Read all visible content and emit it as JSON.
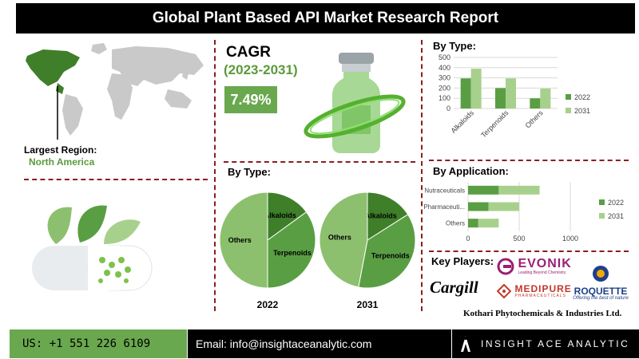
{
  "header": {
    "title": "Global Plant Based API Market Research Report"
  },
  "cagr": {
    "label": "CAGR",
    "period": "(2023-2031)",
    "value": "7.49%"
  },
  "region": {
    "label": "Largest Region:",
    "value": "North America"
  },
  "sections": {
    "by_type_pies": "By Type:",
    "by_type_bar": "By Type:",
    "by_application": "By Application:",
    "key_players": "Key Players:"
  },
  "players": [
    {
      "name": "EVONIK",
      "tagline": "Leading Beyond Chemistry"
    },
    {
      "name": "ROQUETTE",
      "tagline": "Offering the best of nature"
    },
    {
      "name": "Cargill"
    },
    {
      "name": "MEDIPURE",
      "tagline": "PHARMACEUTICALS"
    },
    {
      "name": "Kothari Phytochemicals & Industries Ltd."
    }
  ],
  "footer": {
    "phone": "US: +1 551 226 6109",
    "email": "Email: info@insightaceanalytic.com",
    "brand": "INSIGHT ACE ANALYTIC"
  },
  "colors": {
    "dark_green": "#3f7f2a",
    "mid_green": "#5a9e44",
    "light_green": "#8cc06e",
    "pale_green": "#a8d08d",
    "divider": "#8b1e1e"
  },
  "chart_data": [
    {
      "type": "bar",
      "title": "By Type:",
      "categories": [
        "Alkaloids",
        "Terpenoids",
        "Others"
      ],
      "series": [
        {
          "name": "2022",
          "values": [
            295,
            200,
            100
          ]
        },
        {
          "name": "2031",
          "values": [
            390,
            295,
            195
          ]
        }
      ],
      "yticks": [
        "0",
        "100",
        "200",
        "300",
        "400",
        "500"
      ],
      "ylim": [
        0,
        500
      ],
      "legend": "right"
    },
    {
      "type": "bar",
      "orientation": "horizontal",
      "title": "By Application:",
      "categories": [
        "Nutraceuticals",
        "Pharmaceuti...",
        "Others"
      ],
      "series": [
        {
          "name": "2022",
          "values": [
            300,
            200,
            100
          ]
        },
        {
          "name": "2031",
          "values": [
            400,
            300,
            200
          ]
        }
      ],
      "xticks": [
        "0",
        "500",
        "1000"
      ],
      "xlim": [
        0,
        1000
      ],
      "stacked": true,
      "legend": "right"
    },
    {
      "type": "pie",
      "year_label": "2022",
      "slices": [
        {
          "label": "Alkaloids",
          "value": 15
        },
        {
          "label": "Terpenoids",
          "value": 35
        },
        {
          "label": "Others",
          "value": 50
        }
      ]
    },
    {
      "type": "pie",
      "year_label": "2031",
      "slices": [
        {
          "label": "Alkaloids",
          "value": 16
        },
        {
          "label": "Terpenoids",
          "value": 37
        },
        {
          "label": "Others",
          "value": 47
        }
      ]
    }
  ]
}
